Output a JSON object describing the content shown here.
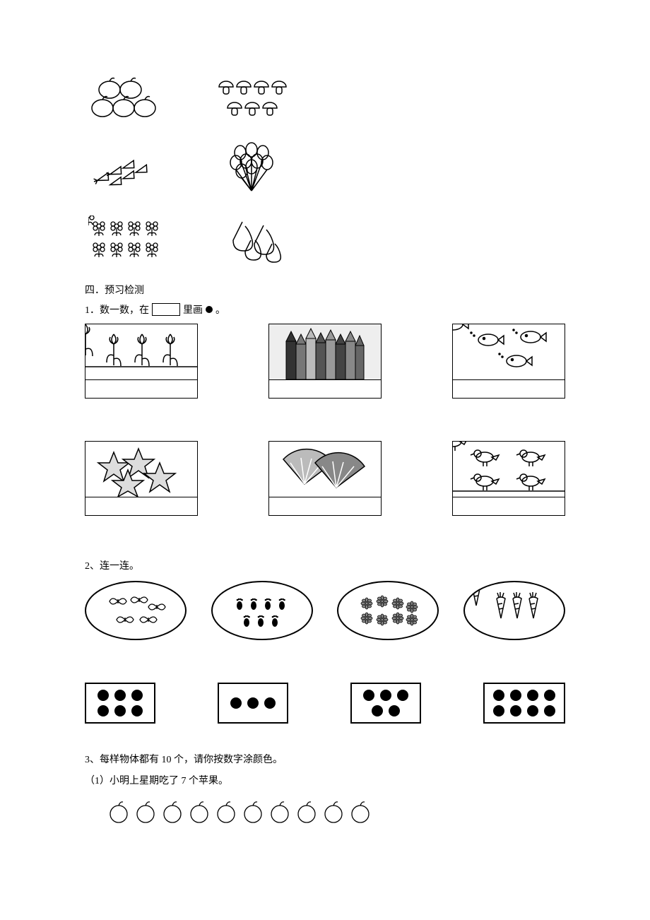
{
  "section_heading": "四．预习检测",
  "q1": {
    "prefix": "1．数一数，在",
    "suffix": "里画",
    "tail": "。",
    "items": [
      {
        "name": "tulips",
        "count": 3,
        "shaded": false
      },
      {
        "name": "pencils",
        "count": 8,
        "shaded": true
      },
      {
        "name": "fish",
        "count": 3,
        "shaded": false
      },
      {
        "name": "stars",
        "count": 4,
        "shaded": false
      },
      {
        "name": "fans",
        "count": 2,
        "shaded": false
      },
      {
        "name": "birds",
        "count": 4,
        "shaded": false
      }
    ]
  },
  "q2": {
    "label": "2、连一连。",
    "ovals": [
      {
        "name": "butterflies",
        "count": 5
      },
      {
        "name": "footprints",
        "count": 7
      },
      {
        "name": "flowers-cluster",
        "count": 8
      },
      {
        "name": "carrots-oval",
        "count": 3
      }
    ],
    "dot_boxes": [
      {
        "rows": [
          3,
          3
        ]
      },
      {
        "rows": [
          3
        ]
      },
      {
        "rows": [
          3,
          2
        ]
      },
      {
        "rows": [
          4,
          4
        ]
      }
    ]
  },
  "q3": {
    "label": "3、每样物体都有 10 个，",
    "label_tail": "请你按数字涂颜色。",
    "sub1": "（1）小明上星期吃了 7 个苹果。",
    "apple_count": 10
  },
  "colors": {
    "page_bg": "#ffffff",
    "ink": "#000000",
    "shade": "#eeeeee",
    "pencil_fills": [
      "#333",
      "#777",
      "#bbb",
      "#555",
      "#999",
      "#444",
      "#888",
      "#666"
    ]
  }
}
